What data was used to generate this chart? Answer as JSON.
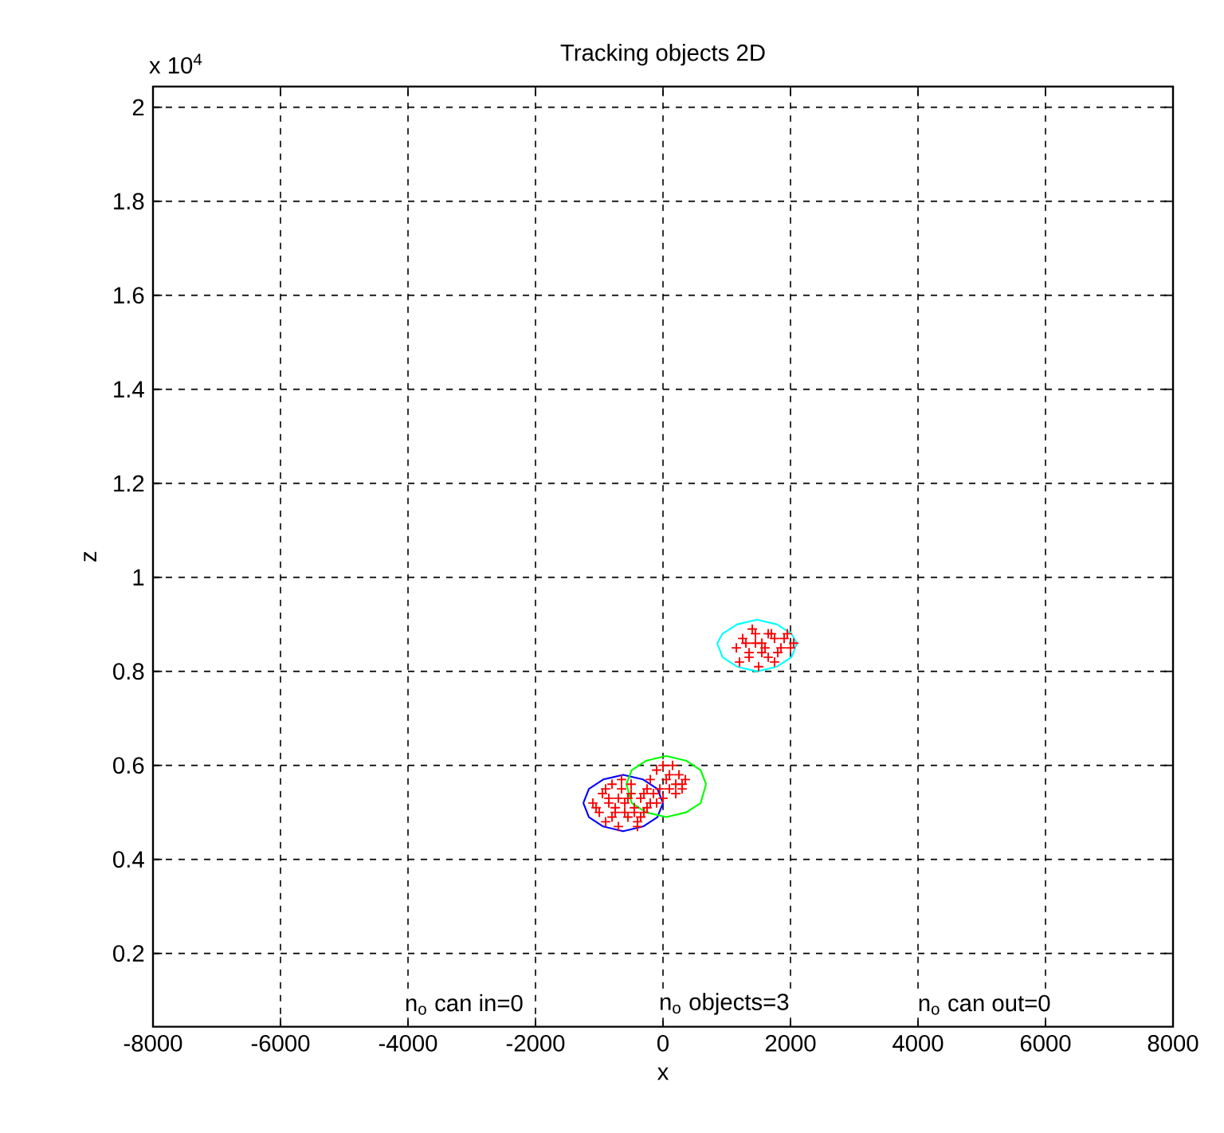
{
  "chart_data": {
    "type": "scatter",
    "title": "Tracking objects 2D",
    "xlabel": "x",
    "ylabel": "z",
    "xlim": [
      -8000,
      8000
    ],
    "ylim": [
      0.044,
      2.044
    ],
    "xticks": [
      -8000,
      -6000,
      -4000,
      -2000,
      0,
      2000,
      4000,
      6000,
      8000
    ],
    "yticks": [
      0.2,
      0.4,
      0.6,
      0.8,
      1,
      1.2,
      1.4,
      1.6,
      1.8,
      2
    ],
    "grid": true,
    "annotations": [
      "x 10$^{4}$",
      "n$_{o}$ can in=0",
      "n$_{o}$ objects=3",
      "n$_{o}$ can out=0"
    ],
    "series": [
      {
        "marker": "cross",
        "color": "#ff0000",
        "x": [
          -1100,
          -1000,
          -950,
          -900,
          -850,
          -800,
          -750,
          -700,
          -650,
          -600,
          -550,
          -500,
          -450,
          -400,
          -350,
          -300,
          -250,
          -200,
          -1050,
          -900,
          -800,
          -700,
          -600,
          -500,
          -400,
          -300,
          -850,
          -650,
          -450,
          -750,
          -550,
          -350,
          -250,
          -150,
          -200,
          -100,
          0,
          100,
          200,
          300,
          350,
          -50,
          50,
          150,
          250,
          0,
          100,
          200,
          -100,
          300,
          1150,
          1250,
          1350,
          1450,
          1550,
          1650,
          1750,
          1850,
          1950,
          2050,
          1200,
          1300,
          1400,
          1500,
          1600,
          1700,
          1800,
          1900,
          2000,
          1350,
          1550,
          1750,
          1450,
          1650
        ],
        "values": [
          0.52,
          0.5,
          0.54,
          0.48,
          0.53,
          0.56,
          0.5,
          0.47,
          0.55,
          0.52,
          0.49,
          0.54,
          0.51,
          0.48,
          0.53,
          0.5,
          0.55,
          0.52,
          0.51,
          0.55,
          0.49,
          0.53,
          0.5,
          0.56,
          0.47,
          0.54,
          0.52,
          0.57,
          0.5,
          0.51,
          0.53,
          0.49,
          0.51,
          0.54,
          0.57,
          0.59,
          0.6,
          0.58,
          0.56,
          0.55,
          0.57,
          0.55,
          0.57,
          0.6,
          0.58,
          0.53,
          0.55,
          0.54,
          0.52,
          0.56,
          0.85,
          0.87,
          0.84,
          0.88,
          0.86,
          0.83,
          0.87,
          0.85,
          0.88,
          0.86,
          0.82,
          0.86,
          0.89,
          0.81,
          0.85,
          0.88,
          0.84,
          0.87,
          0.85,
          0.83,
          0.84,
          0.82,
          0.86,
          0.88
        ]
      },
      {
        "type": "line",
        "marker": "none",
        "color": "#0000ff",
        "x": [
          -1250,
          -1162,
          -938,
          -625,
          -312,
          -88,
          0
        ],
        "values": [
          0.52,
          0.55,
          0.57,
          0.58,
          0.57,
          0.55,
          0.52
        ]
      },
      {
        "type": "line",
        "marker": "none",
        "color": "#0000ff",
        "x": [
          -1250,
          -1162,
          -938,
          -625,
          -312,
          -88,
          0
        ],
        "values": [
          0.52,
          0.49,
          0.47,
          0.46,
          0.47,
          0.49,
          0.52
        ]
      },
      {
        "type": "line",
        "marker": "none",
        "color": "#00ff00",
        "x": [
          -575,
          -491,
          -262,
          50,
          362,
          591,
          675
        ],
        "values": [
          0.56,
          0.59,
          0.61,
          0.62,
          0.61,
          0.59,
          0.56
        ]
      },
      {
        "type": "line",
        "marker": "none",
        "color": "#00ff00",
        "x": [
          -575,
          -491,
          -262,
          50,
          362,
          591,
          675
        ],
        "values": [
          0.56,
          0.52,
          0.5,
          0.49,
          0.5,
          0.52,
          0.56
        ]
      },
      {
        "type": "line",
        "marker": "none",
        "color": "#00ffff",
        "x": [
          850,
          934,
          1163,
          1475,
          1787,
          2016,
          2100
        ],
        "values": [
          0.86,
          0.88,
          0.9,
          0.91,
          0.9,
          0.88,
          0.86
        ]
      },
      {
        "type": "line",
        "marker": "none",
        "color": "#00ffff",
        "x": [
          850,
          934,
          1163,
          1475,
          1787,
          2016,
          2100
        ],
        "values": [
          0.86,
          0.83,
          0.81,
          0.8,
          0.81,
          0.83,
          0.86
        ]
      }
    ]
  }
}
